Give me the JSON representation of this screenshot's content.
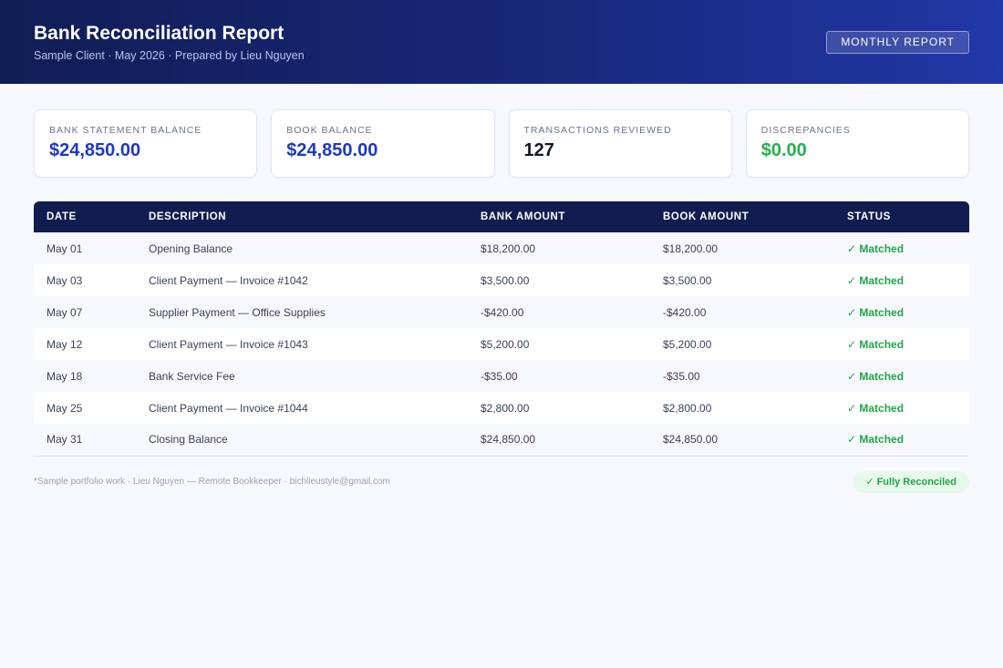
{
  "header": {
    "title": "Bank Reconciliation Report",
    "subtitle": "Sample Client · May 2026 · Prepared by Lieu Nguyen",
    "badge": "MONTHLY REPORT"
  },
  "cards": [
    {
      "label": "BANK STATEMENT BALANCE",
      "value": "$24,850.00",
      "color": "#1e38c4"
    },
    {
      "label": "BOOK BALANCE",
      "value": "$24,850.00",
      "color": "#1e38c4"
    },
    {
      "label": "TRANSACTIONS REVIEWED",
      "value": "127",
      "color": "#121826"
    },
    {
      "label": "DISCREPANCIES",
      "value": "$0.00",
      "color": "#22b14c"
    }
  ],
  "table": {
    "columns": [
      "DATE",
      "DESCRIPTION",
      "BANK AMOUNT",
      "BOOK AMOUNT",
      "STATUS"
    ],
    "rows": [
      {
        "date": "May 01",
        "description": "Opening Balance",
        "bank": "$18,200.00",
        "book": "$18,200.00",
        "status": "✓ Matched"
      },
      {
        "date": "May 03",
        "description": "Client Payment — Invoice #1042",
        "bank": "$3,500.00",
        "book": "$3,500.00",
        "status": "✓ Matched"
      },
      {
        "date": "May 07",
        "description": "Supplier Payment — Office Supplies",
        "bank": "-$420.00",
        "book": "-$420.00",
        "status": "✓ Matched"
      },
      {
        "date": "May 12",
        "description": "Client Payment — Invoice #1043",
        "bank": "$5,200.00",
        "book": "$5,200.00",
        "status": "✓ Matched"
      },
      {
        "date": "May 18",
        "description": "Bank Service Fee",
        "bank": "-$35.00",
        "book": "-$35.00",
        "status": "✓ Matched"
      },
      {
        "date": "May 25",
        "description": "Client Payment — Invoice #1044",
        "bank": "$2,800.00",
        "book": "$2,800.00",
        "status": "✓ Matched"
      },
      {
        "date": "May 31",
        "description": "Closing Balance",
        "bank": "$24,850.00",
        "book": "$24,850.00",
        "status": "✓ Matched"
      }
    ]
  },
  "footer": {
    "note": "*Sample portfolio work · Lieu Nguyen — Remote Bookkeeper · bichlieustyle@gmail.com",
    "pill": "✓ Fully Reconciled"
  },
  "colors": {
    "accent": "#1e38c4",
    "success": "#22b14c",
    "header_dark": "#111c50"
  }
}
